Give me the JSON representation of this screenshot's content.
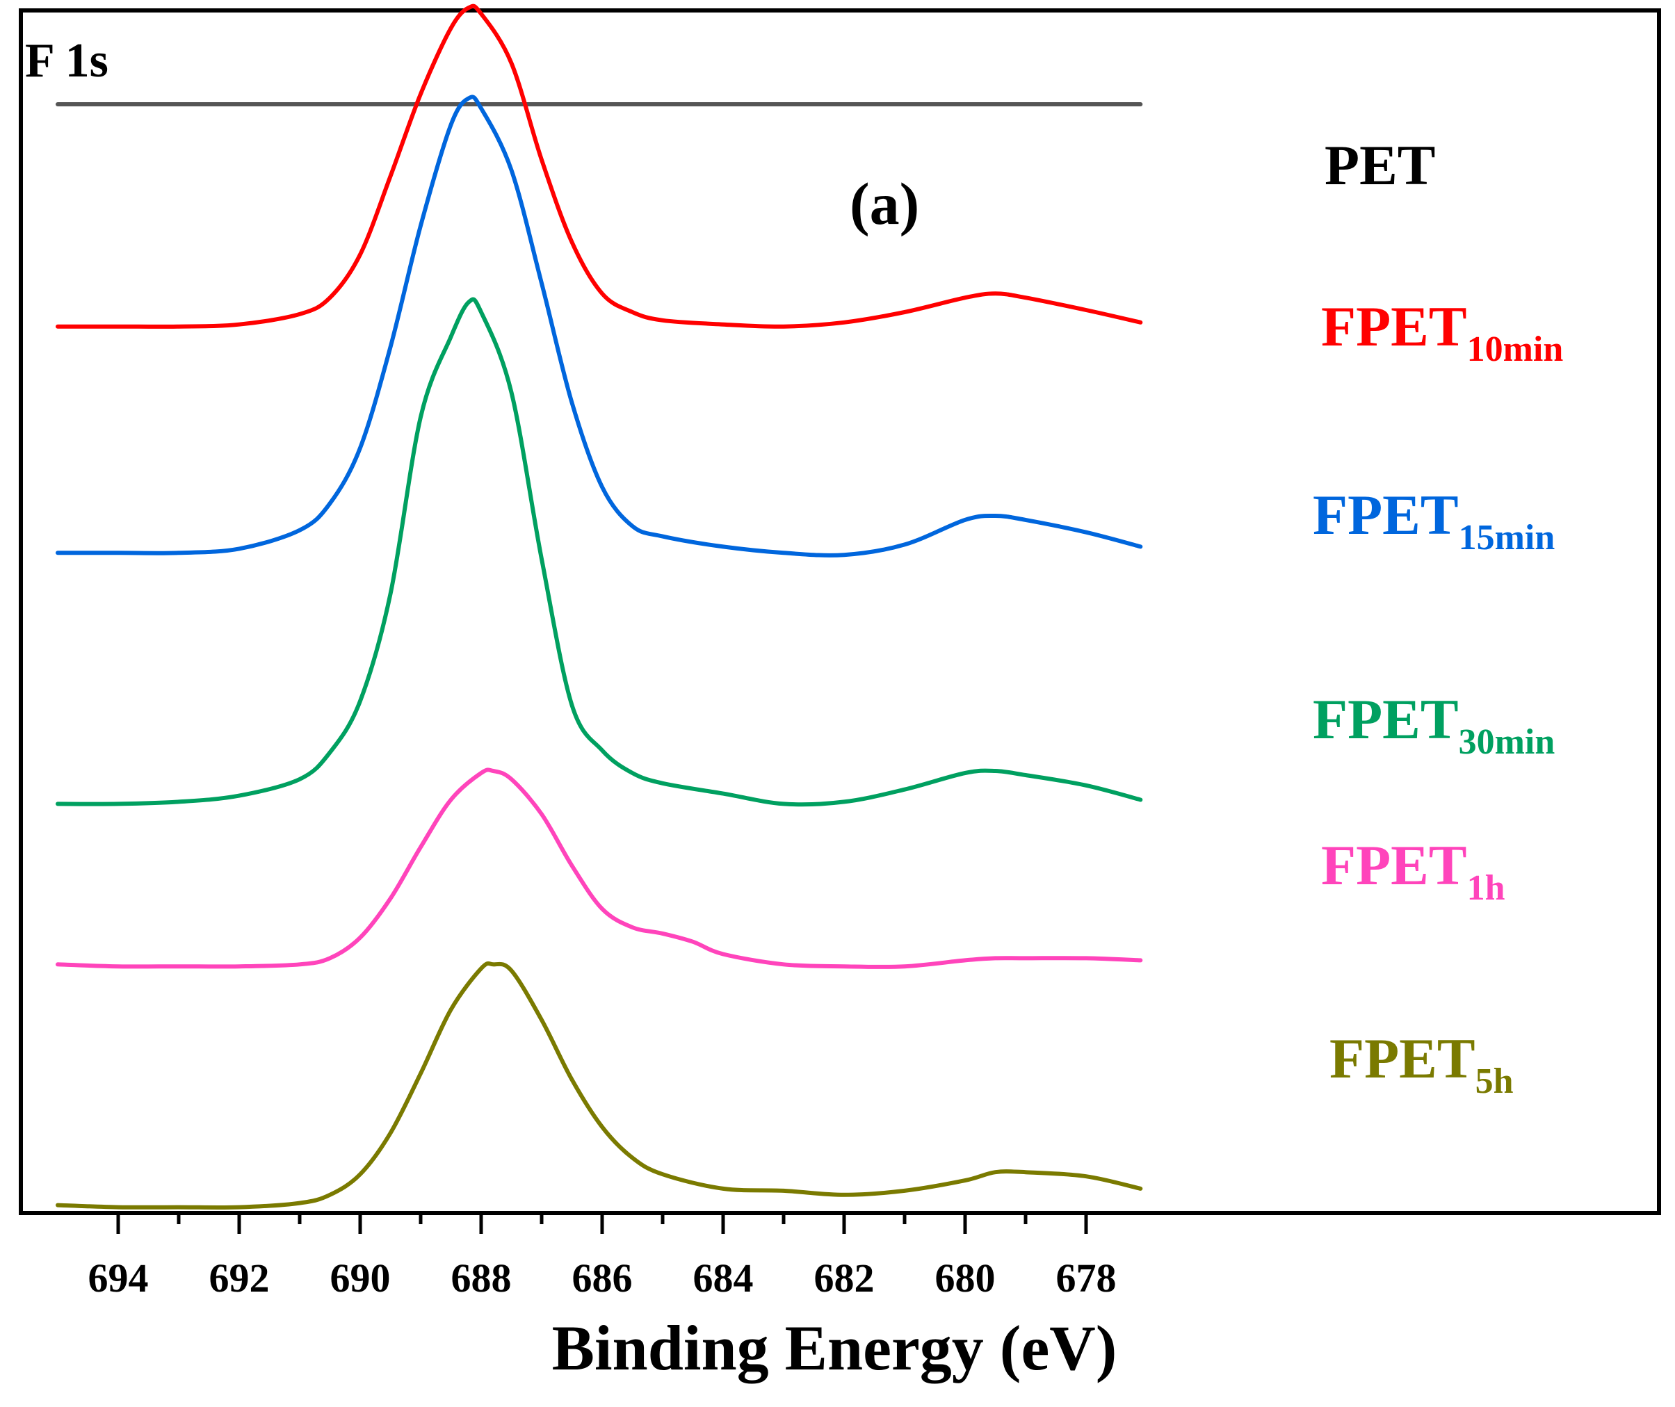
{
  "chart_data": {
    "type": "line",
    "title": "",
    "corner_label": "F 1s",
    "panel_label": "(a)",
    "xlabel": "Binding Energy (eV)",
    "ylabel": "",
    "xlim": [
      695.1,
      677.1
    ],
    "x_reversed": true,
    "x_ticks_major": [
      694,
      692,
      690,
      688,
      686,
      684,
      682,
      680,
      678
    ],
    "x_tick_labels": [
      "694",
      "692",
      "690",
      "688",
      "686",
      "684",
      "682",
      "680",
      "678"
    ],
    "x_ticks_minor": [
      693,
      691,
      689,
      687,
      685,
      683,
      681,
      679
    ],
    "y_ticks": false,
    "grid": false,
    "legend": "inline labels at right",
    "series": [
      {
        "name": "PET",
        "label_main": "PET",
        "label_sub": "",
        "color": "#555555",
        "x": [
          695,
          693,
          691,
          689,
          688,
          687,
          685,
          683,
          681,
          679,
          677.1
        ],
        "y": [
          5.0,
          5.0,
          5.0,
          5.0,
          5.0,
          5.0,
          5.0,
          5.0,
          5.0,
          5.0,
          5.0
        ]
      },
      {
        "name": "FPET10min",
        "label_main": "FPET",
        "label_sub": "10min",
        "color": "#ff0000",
        "x": [
          695,
          694,
          693,
          692,
          691,
          690.5,
          690,
          689.5,
          689,
          688.5,
          688.2,
          688,
          687.5,
          687,
          686.5,
          686,
          685.5,
          685,
          684,
          683,
          682,
          681,
          680,
          679.5,
          679,
          678,
          677.1
        ],
        "y": [
          3.92,
          3.92,
          3.92,
          3.93,
          3.98,
          4.06,
          4.27,
          4.65,
          5.05,
          5.37,
          5.47,
          5.44,
          5.2,
          4.73,
          4.33,
          4.08,
          3.99,
          3.95,
          3.93,
          3.92,
          3.94,
          3.99,
          4.06,
          4.08,
          4.06,
          4.0,
          3.94
        ]
      },
      {
        "name": "FPET15min",
        "label_main": "FPET",
        "label_sub": "15min",
        "color": "#0066dd",
        "x": [
          695,
          694,
          693,
          692,
          691,
          690.5,
          690,
          689.5,
          689,
          688.5,
          688.2,
          688,
          687.5,
          687,
          686.5,
          686,
          685.5,
          685,
          684,
          683,
          682,
          681,
          680,
          679.5,
          679,
          678,
          677.1
        ],
        "y": [
          2.82,
          2.82,
          2.82,
          2.84,
          2.93,
          3.06,
          3.33,
          3.82,
          4.41,
          4.9,
          5.03,
          4.98,
          4.68,
          4.13,
          3.55,
          3.14,
          2.95,
          2.9,
          2.85,
          2.82,
          2.81,
          2.86,
          2.98,
          3.0,
          2.98,
          2.92,
          2.85
        ]
      },
      {
        "name": "FPET30min",
        "label_main": "FPET",
        "label_sub": "30min",
        "color": "#00a060",
        "x": [
          695,
          694,
          693,
          692,
          691,
          690.5,
          690,
          689.5,
          689,
          688.5,
          688.2,
          688,
          687.5,
          687,
          686.5,
          686,
          685.5,
          685,
          684,
          683,
          682,
          681,
          680,
          679.5,
          679,
          678,
          677.1
        ],
        "y": [
          1.6,
          1.6,
          1.61,
          1.64,
          1.72,
          1.85,
          2.1,
          2.62,
          3.48,
          3.87,
          4.04,
          3.99,
          3.6,
          2.79,
          2.08,
          1.86,
          1.75,
          1.7,
          1.65,
          1.6,
          1.61,
          1.67,
          1.75,
          1.76,
          1.74,
          1.69,
          1.62
        ]
      },
      {
        "name": "FPET1h",
        "label_main": "FPET",
        "label_sub": "1h",
        "color": "#ff44bb",
        "x": [
          695,
          694,
          693,
          692,
          691,
          690.5,
          690,
          689.5,
          689,
          688.5,
          688,
          687.8,
          687.5,
          687,
          686.5,
          686,
          685.5,
          685,
          684.5,
          684,
          683,
          682,
          681,
          680,
          679.5,
          679,
          678,
          677.1
        ],
        "y": [
          0.82,
          0.81,
          0.81,
          0.81,
          0.82,
          0.85,
          0.95,
          1.14,
          1.39,
          1.62,
          1.75,
          1.76,
          1.72,
          1.55,
          1.3,
          1.09,
          1.0,
          0.97,
          0.93,
          0.87,
          0.82,
          0.81,
          0.81,
          0.84,
          0.85,
          0.85,
          0.85,
          0.84
        ]
      },
      {
        "name": "FPET5h",
        "label_main": "FPET",
        "label_sub": "5h",
        "color": "#7a7a00",
        "x": [
          695,
          694,
          693,
          692,
          691,
          690.5,
          690,
          689.5,
          689,
          688.5,
          688,
          687.8,
          687.5,
          687,
          686.5,
          686,
          685.5,
          685,
          684,
          683,
          682,
          681,
          680,
          679.5,
          679,
          678,
          677.1
        ],
        "y": [
          -0.35,
          -0.36,
          -0.36,
          -0.36,
          -0.34,
          -0.3,
          -0.2,
          0.0,
          0.29,
          0.6,
          0.8,
          0.82,
          0.79,
          0.55,
          0.26,
          0.03,
          -0.12,
          -0.2,
          -0.27,
          -0.28,
          -0.3,
          -0.28,
          -0.23,
          -0.19,
          -0.19,
          -0.21,
          -0.27
        ]
      }
    ]
  }
}
